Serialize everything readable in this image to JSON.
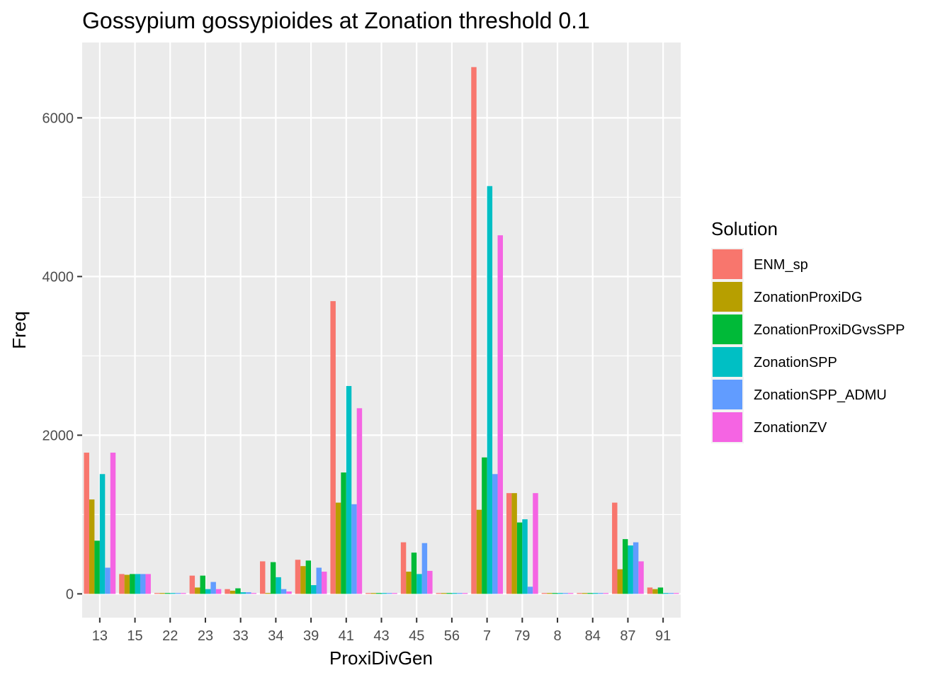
{
  "chart_data": {
    "type": "bar",
    "title": "Gossypium gossypioides at Zonation threshold 0.1",
    "xlabel": "ProxiDivGen",
    "ylabel": "Freq",
    "ylim": [
      -300,
      6950
    ],
    "yticks": [
      0,
      2000,
      4000,
      6000
    ],
    "grid": true,
    "legend": {
      "title": "Solution",
      "position": "right"
    },
    "categories": [
      "13",
      "15",
      "22",
      "23",
      "33",
      "34",
      "39",
      "41",
      "43",
      "45",
      "56",
      "7",
      "79",
      "8",
      "84",
      "87",
      "91"
    ],
    "series": [
      {
        "name": "ENM_sp",
        "color": "#F8766D",
        "values": [
          1780,
          250,
          10,
          230,
          60,
          410,
          430,
          3690,
          0,
          650,
          0,
          6640,
          1270,
          0,
          0,
          1150,
          80
        ]
      },
      {
        "name": "ZonationProxiDG",
        "color": "#B79F00",
        "values": [
          1190,
          240,
          10,
          80,
          40,
          0,
          350,
          1150,
          0,
          280,
          0,
          1060,
          1270,
          0,
          0,
          310,
          60
        ]
      },
      {
        "name": "ZonationProxiDGvsSPP",
        "color": "#00BA38",
        "values": [
          670,
          250,
          10,
          230,
          70,
          400,
          420,
          1530,
          0,
          520,
          10,
          1720,
          900,
          0,
          0,
          690,
          80
        ]
      },
      {
        "name": "ZonationSPP",
        "color": "#00BFC4",
        "values": [
          1510,
          250,
          0,
          60,
          20,
          210,
          110,
          2620,
          0,
          250,
          10,
          5140,
          940,
          0,
          0,
          610,
          0
        ]
      },
      {
        "name": "ZonationSPP_ADMU",
        "color": "#619CFF",
        "values": [
          330,
          250,
          0,
          150,
          20,
          60,
          330,
          1130,
          0,
          640,
          0,
          1510,
          90,
          0,
          0,
          650,
          0
        ]
      },
      {
        "name": "ZonationZV",
        "color": "#F564E3",
        "values": [
          1780,
          250,
          0,
          60,
          10,
          30,
          280,
          2340,
          0,
          290,
          10,
          4520,
          1270,
          0,
          0,
          410,
          0
        ]
      }
    ]
  }
}
